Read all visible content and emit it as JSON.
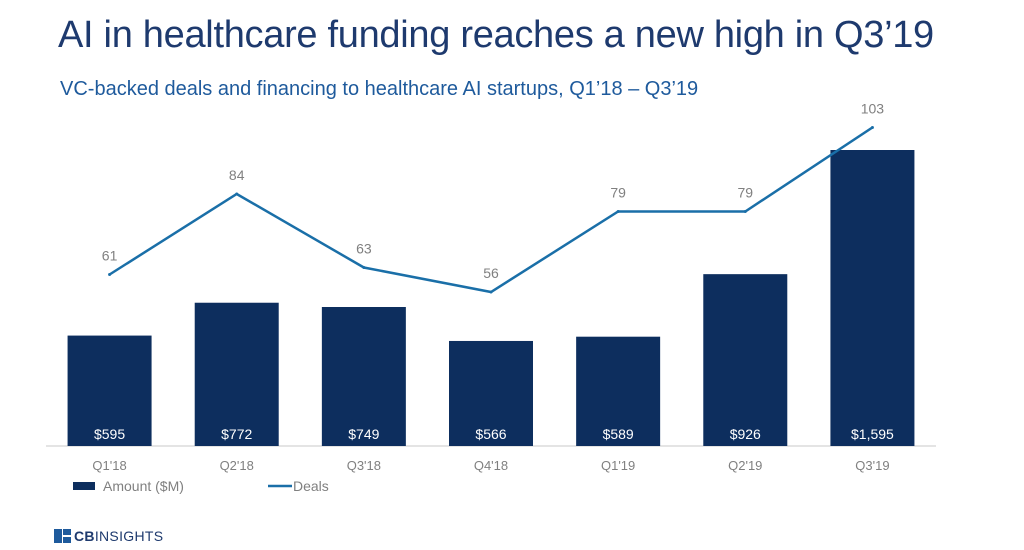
{
  "header": {
    "title": "AI in healthcare funding reaches a new high in Q3’19",
    "subtitle": "VC-backed deals and financing to healthcare AI startups, Q1’18 – Q3’19"
  },
  "logo": {
    "bold": "CB",
    "regular": "INSIGHTS"
  },
  "colors": {
    "bar": "#0d2e5e",
    "line": "#1a6fa8",
    "label": "#808080",
    "bar_label": "#ffffff"
  },
  "chart_data": {
    "type": "bar",
    "categories": [
      "Q1'18",
      "Q2'18",
      "Q3'18",
      "Q4'18",
      "Q1'19",
      "Q2'19",
      "Q3'19"
    ],
    "series": [
      {
        "name": "Amount ($M)",
        "type": "bar",
        "values": [
          595,
          772,
          749,
          566,
          589,
          926,
          1595
        ],
        "labels": [
          "$595",
          "$772",
          "$749",
          "$566",
          "$589",
          "$926",
          "$1,595"
        ]
      },
      {
        "name": "Deals",
        "type": "line",
        "values": [
          61,
          84,
          63,
          56,
          79,
          79,
          103
        ],
        "labels": [
          "61",
          "84",
          "63",
          "56",
          "79",
          "79",
          "103"
        ]
      }
    ],
    "legend": "bottom-left",
    "grid": false
  }
}
